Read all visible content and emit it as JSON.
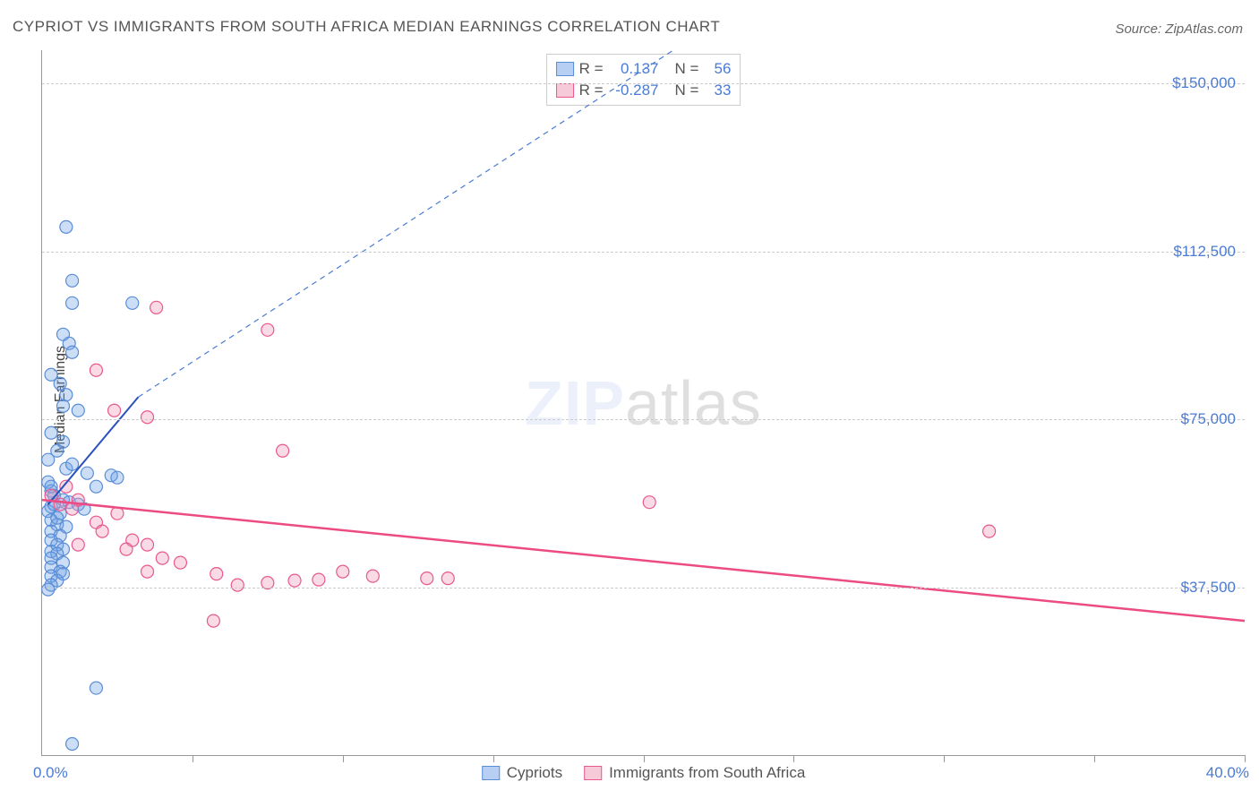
{
  "title": "CYPRIOT VS IMMIGRANTS FROM SOUTH AFRICA MEDIAN EARNINGS CORRELATION CHART",
  "source": "Source: ZipAtlas.com",
  "ylabel": "Median Earnings",
  "watermark_zip": "ZIP",
  "watermark_atlas": "atlas",
  "chart": {
    "type": "scatter",
    "background_color": "#ffffff",
    "grid_color": "#cccccc",
    "axis_color": "#999999",
    "xlim": [
      0,
      40
    ],
    "ylim": [
      0,
      157500
    ],
    "x_min_label": "0.0%",
    "x_max_label": "40.0%",
    "x_ticks_pct": [
      5,
      10,
      15,
      20,
      25,
      30,
      35,
      40
    ],
    "y_gridlines": [
      {
        "value": 37500,
        "label": "$37,500"
      },
      {
        "value": 75000,
        "label": "$75,000"
      },
      {
        "value": 112500,
        "label": "$112,500"
      },
      {
        "value": 150000,
        "label": "$150,000"
      }
    ],
    "marker_radius": 7,
    "series": [
      {
        "key": "cypriots",
        "label": "Cypriots",
        "color_fill": "#6ea0e6",
        "color_stroke": "#5a8dd6",
        "css": "blue",
        "stats": {
          "R": "0.137",
          "N": "56"
        },
        "trend": {
          "solid": {
            "x1": 0.2,
            "y1": 56000,
            "x2": 3.2,
            "y2": 80000,
            "color": "#2a52be"
          },
          "dashed": {
            "x1": 3.2,
            "y1": 80000,
            "x2": 21,
            "y2": 157500,
            "color": "#4a7bd4"
          }
        },
        "points": [
          [
            0.8,
            118000
          ],
          [
            1.0,
            106000
          ],
          [
            1.0,
            101000
          ],
          [
            3.0,
            101000
          ],
          [
            0.7,
            94000
          ],
          [
            0.9,
            92000
          ],
          [
            1.0,
            90000
          ],
          [
            0.3,
            85000
          ],
          [
            0.6,
            83000
          ],
          [
            0.8,
            80500
          ],
          [
            0.7,
            78000
          ],
          [
            1.2,
            77000
          ],
          [
            0.3,
            72000
          ],
          [
            0.7,
            70000
          ],
          [
            0.5,
            68000
          ],
          [
            0.2,
            66000
          ],
          [
            0.8,
            64000
          ],
          [
            1.5,
            63000
          ],
          [
            2.3,
            62500
          ],
          [
            2.5,
            62000
          ],
          [
            0.2,
            61000
          ],
          [
            0.3,
            59000
          ],
          [
            0.4,
            58000
          ],
          [
            0.7,
            57000
          ],
          [
            0.9,
            56500
          ],
          [
            1.2,
            56000
          ],
          [
            0.3,
            55500
          ],
          [
            0.2,
            54500
          ],
          [
            0.6,
            54000
          ],
          [
            0.3,
            52500
          ],
          [
            0.5,
            51500
          ],
          [
            0.8,
            51000
          ],
          [
            0.3,
            50000
          ],
          [
            0.6,
            49000
          ],
          [
            0.3,
            48000
          ],
          [
            0.5,
            47000
          ],
          [
            0.7,
            46000
          ],
          [
            0.3,
            45500
          ],
          [
            0.5,
            45000
          ],
          [
            0.3,
            44000
          ],
          [
            0.7,
            43000
          ],
          [
            0.3,
            42000
          ],
          [
            0.6,
            41000
          ],
          [
            0.3,
            40000
          ],
          [
            0.7,
            40500
          ],
          [
            0.5,
            39000
          ],
          [
            0.3,
            38000
          ],
          [
            0.2,
            37000
          ],
          [
            1.4,
            55000
          ],
          [
            0.5,
            53000
          ],
          [
            1.0,
            65000
          ],
          [
            0.3,
            60000
          ],
          [
            0.4,
            56000
          ],
          [
            1.8,
            60000
          ],
          [
            1.8,
            15000
          ],
          [
            1.0,
            2500
          ]
        ]
      },
      {
        "key": "south_africa",
        "label": "Immigrants from South Africa",
        "color_fill": "#f096b4",
        "color_stroke": "#e8588f",
        "css": "pink",
        "stats": {
          "R": "-0.287",
          "N": "33"
        },
        "trend": {
          "solid": {
            "x1": 0,
            "y1": 57000,
            "x2": 40,
            "y2": 30000,
            "color": "#ec4b83"
          }
        },
        "points": [
          [
            3.8,
            100000
          ],
          [
            7.5,
            95000
          ],
          [
            1.8,
            86000
          ],
          [
            2.4,
            77000
          ],
          [
            3.5,
            75500
          ],
          [
            8.0,
            68000
          ],
          [
            0.8,
            60000
          ],
          [
            0.3,
            58000
          ],
          [
            1.2,
            57000
          ],
          [
            1.0,
            55000
          ],
          [
            2.5,
            54000
          ],
          [
            1.8,
            52000
          ],
          [
            2.0,
            50000
          ],
          [
            20.2,
            56500
          ],
          [
            3.0,
            48000
          ],
          [
            3.5,
            47000
          ],
          [
            4.0,
            44000
          ],
          [
            4.6,
            43000
          ],
          [
            3.5,
            41000
          ],
          [
            5.8,
            40500
          ],
          [
            6.5,
            38000
          ],
          [
            7.5,
            38500
          ],
          [
            8.4,
            39000
          ],
          [
            9.2,
            39200
          ],
          [
            10.0,
            41000
          ],
          [
            11.0,
            40000
          ],
          [
            12.8,
            39500
          ],
          [
            13.5,
            39500
          ],
          [
            1.2,
            47000
          ],
          [
            2.8,
            46000
          ],
          [
            31.5,
            50000
          ],
          [
            5.7,
            30000
          ],
          [
            0.6,
            56000
          ]
        ]
      }
    ]
  },
  "legend": {
    "r_label": "R =",
    "n_label": "N ="
  }
}
